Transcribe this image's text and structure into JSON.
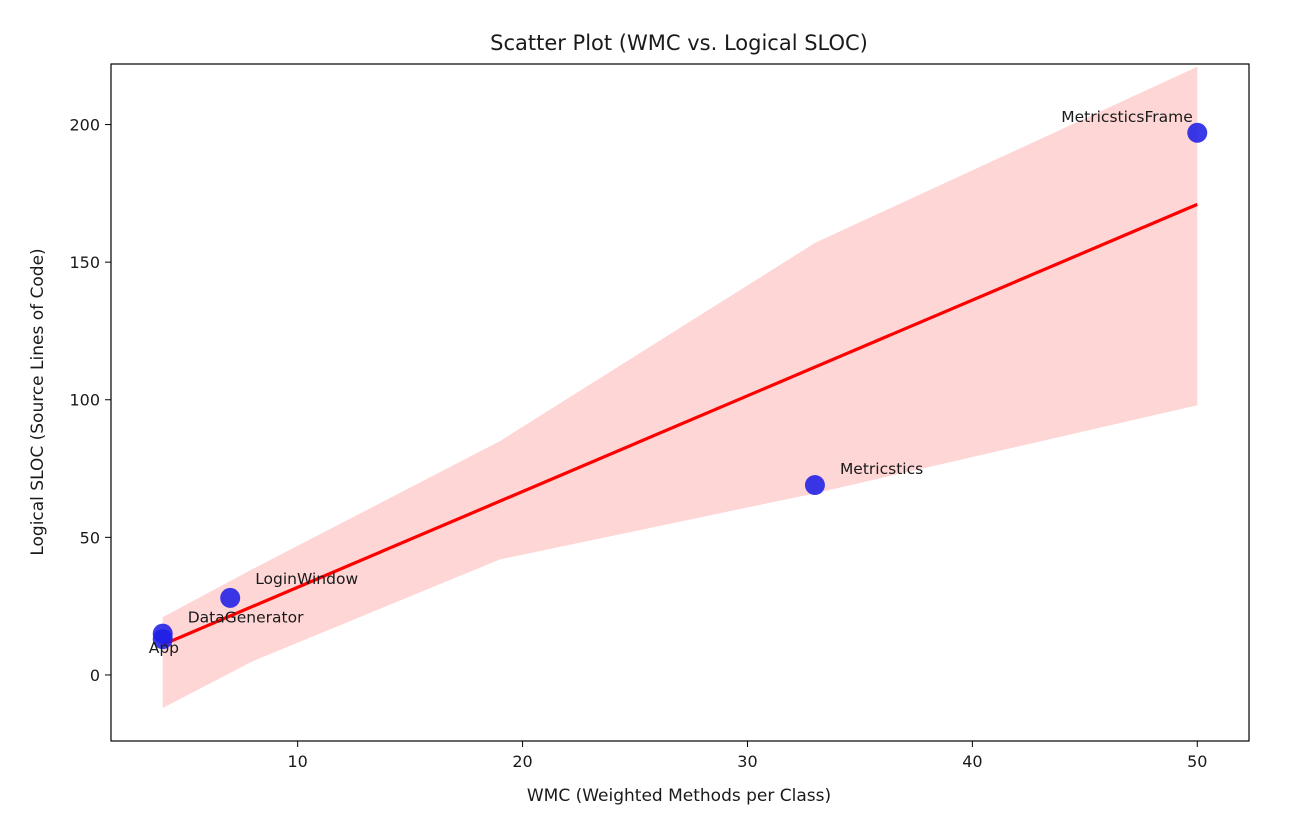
{
  "chart_data": {
    "type": "scatter",
    "title": "Scatter Plot (WMC vs. Logical SLOC)",
    "xlabel": "WMC (Weighted Methods per Class)",
    "ylabel": "Logical SLOC (Source Lines of Code)",
    "xlim": [
      1.7,
      52.3
    ],
    "ylim": [
      -24,
      222
    ],
    "xticks": [
      10,
      20,
      30,
      40,
      50
    ],
    "yticks": [
      0,
      50,
      100,
      150,
      200
    ],
    "grid": false,
    "points": [
      {
        "label": "App",
        "x": 4,
        "y": 13
      },
      {
        "label": "DataGenerator",
        "x": 4,
        "y": 15
      },
      {
        "label": "LoginWindow",
        "x": 7,
        "y": 28
      },
      {
        "label": "Metricstics",
        "x": 33,
        "y": 69
      },
      {
        "label": "MetricsticsFrame",
        "x": 50,
        "y": 197
      }
    ],
    "regression": {
      "x": [
        4,
        50
      ],
      "y": [
        11,
        171
      ]
    },
    "confidence_band": {
      "x": [
        4,
        8,
        19,
        33,
        50
      ],
      "lower": [
        -12,
        5,
        42,
        66,
        98
      ],
      "upper": [
        21,
        38.5,
        85,
        157,
        221
      ]
    },
    "colors": {
      "points": "#1f1fe6",
      "regression": "#ff0000",
      "band": "#ffd6d6"
    }
  }
}
